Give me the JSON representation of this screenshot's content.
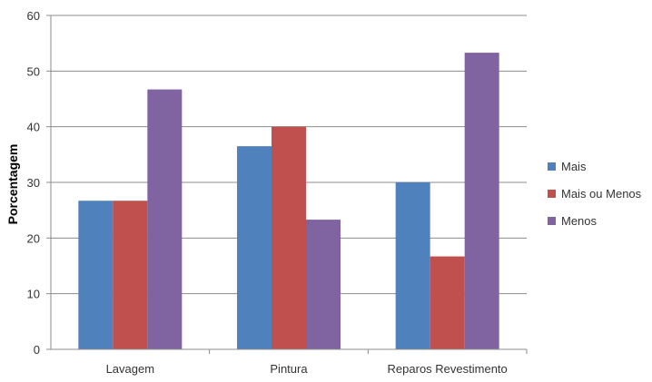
{
  "chart_data": {
    "type": "bar",
    "title": "",
    "xlabel": "",
    "ylabel": "Porcentagem",
    "ylim": [
      0,
      60
    ],
    "yticks": [
      0,
      10,
      20,
      30,
      40,
      50,
      60
    ],
    "grid": true,
    "legend_position": "right",
    "categories": [
      "Lavagem",
      "Pintura",
      "Reparos Revestimento"
    ],
    "series": [
      {
        "name": "Mais",
        "color": "#4F81BD",
        "values": [
          26.7,
          36.5,
          30.0
        ]
      },
      {
        "name": "Mais ou Menos",
        "color": "#C0504D",
        "values": [
          26.7,
          40.0,
          16.7
        ]
      },
      {
        "name": "Menos",
        "color": "#8064A2",
        "values": [
          46.7,
          23.3,
          53.3
        ]
      }
    ]
  }
}
